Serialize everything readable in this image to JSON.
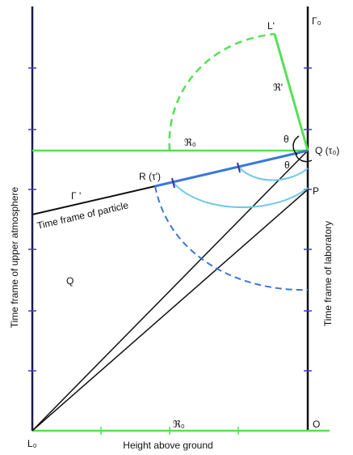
{
  "labels": {
    "l_prime": "L'",
    "gamma_0": "Γ₀",
    "r_prime": "ℜ'",
    "r_0_top": "ℜ₀",
    "theta_upper": "θ",
    "theta_lower": "θ",
    "q_tau0": "Q (τ₀)",
    "r_tau_prime": "R (τ')",
    "p": "P",
    "gamma_prime": "Γ '",
    "particle_frame": "Time frame of particle",
    "q": "Q",
    "upper_frame": "Time frame of upper atmosphere",
    "lab_frame": "Time frame of laboratory",
    "l_0": "L₀",
    "o": "O",
    "r_0_bottom": "ℜ₀",
    "height": "Height above ground"
  }
}
